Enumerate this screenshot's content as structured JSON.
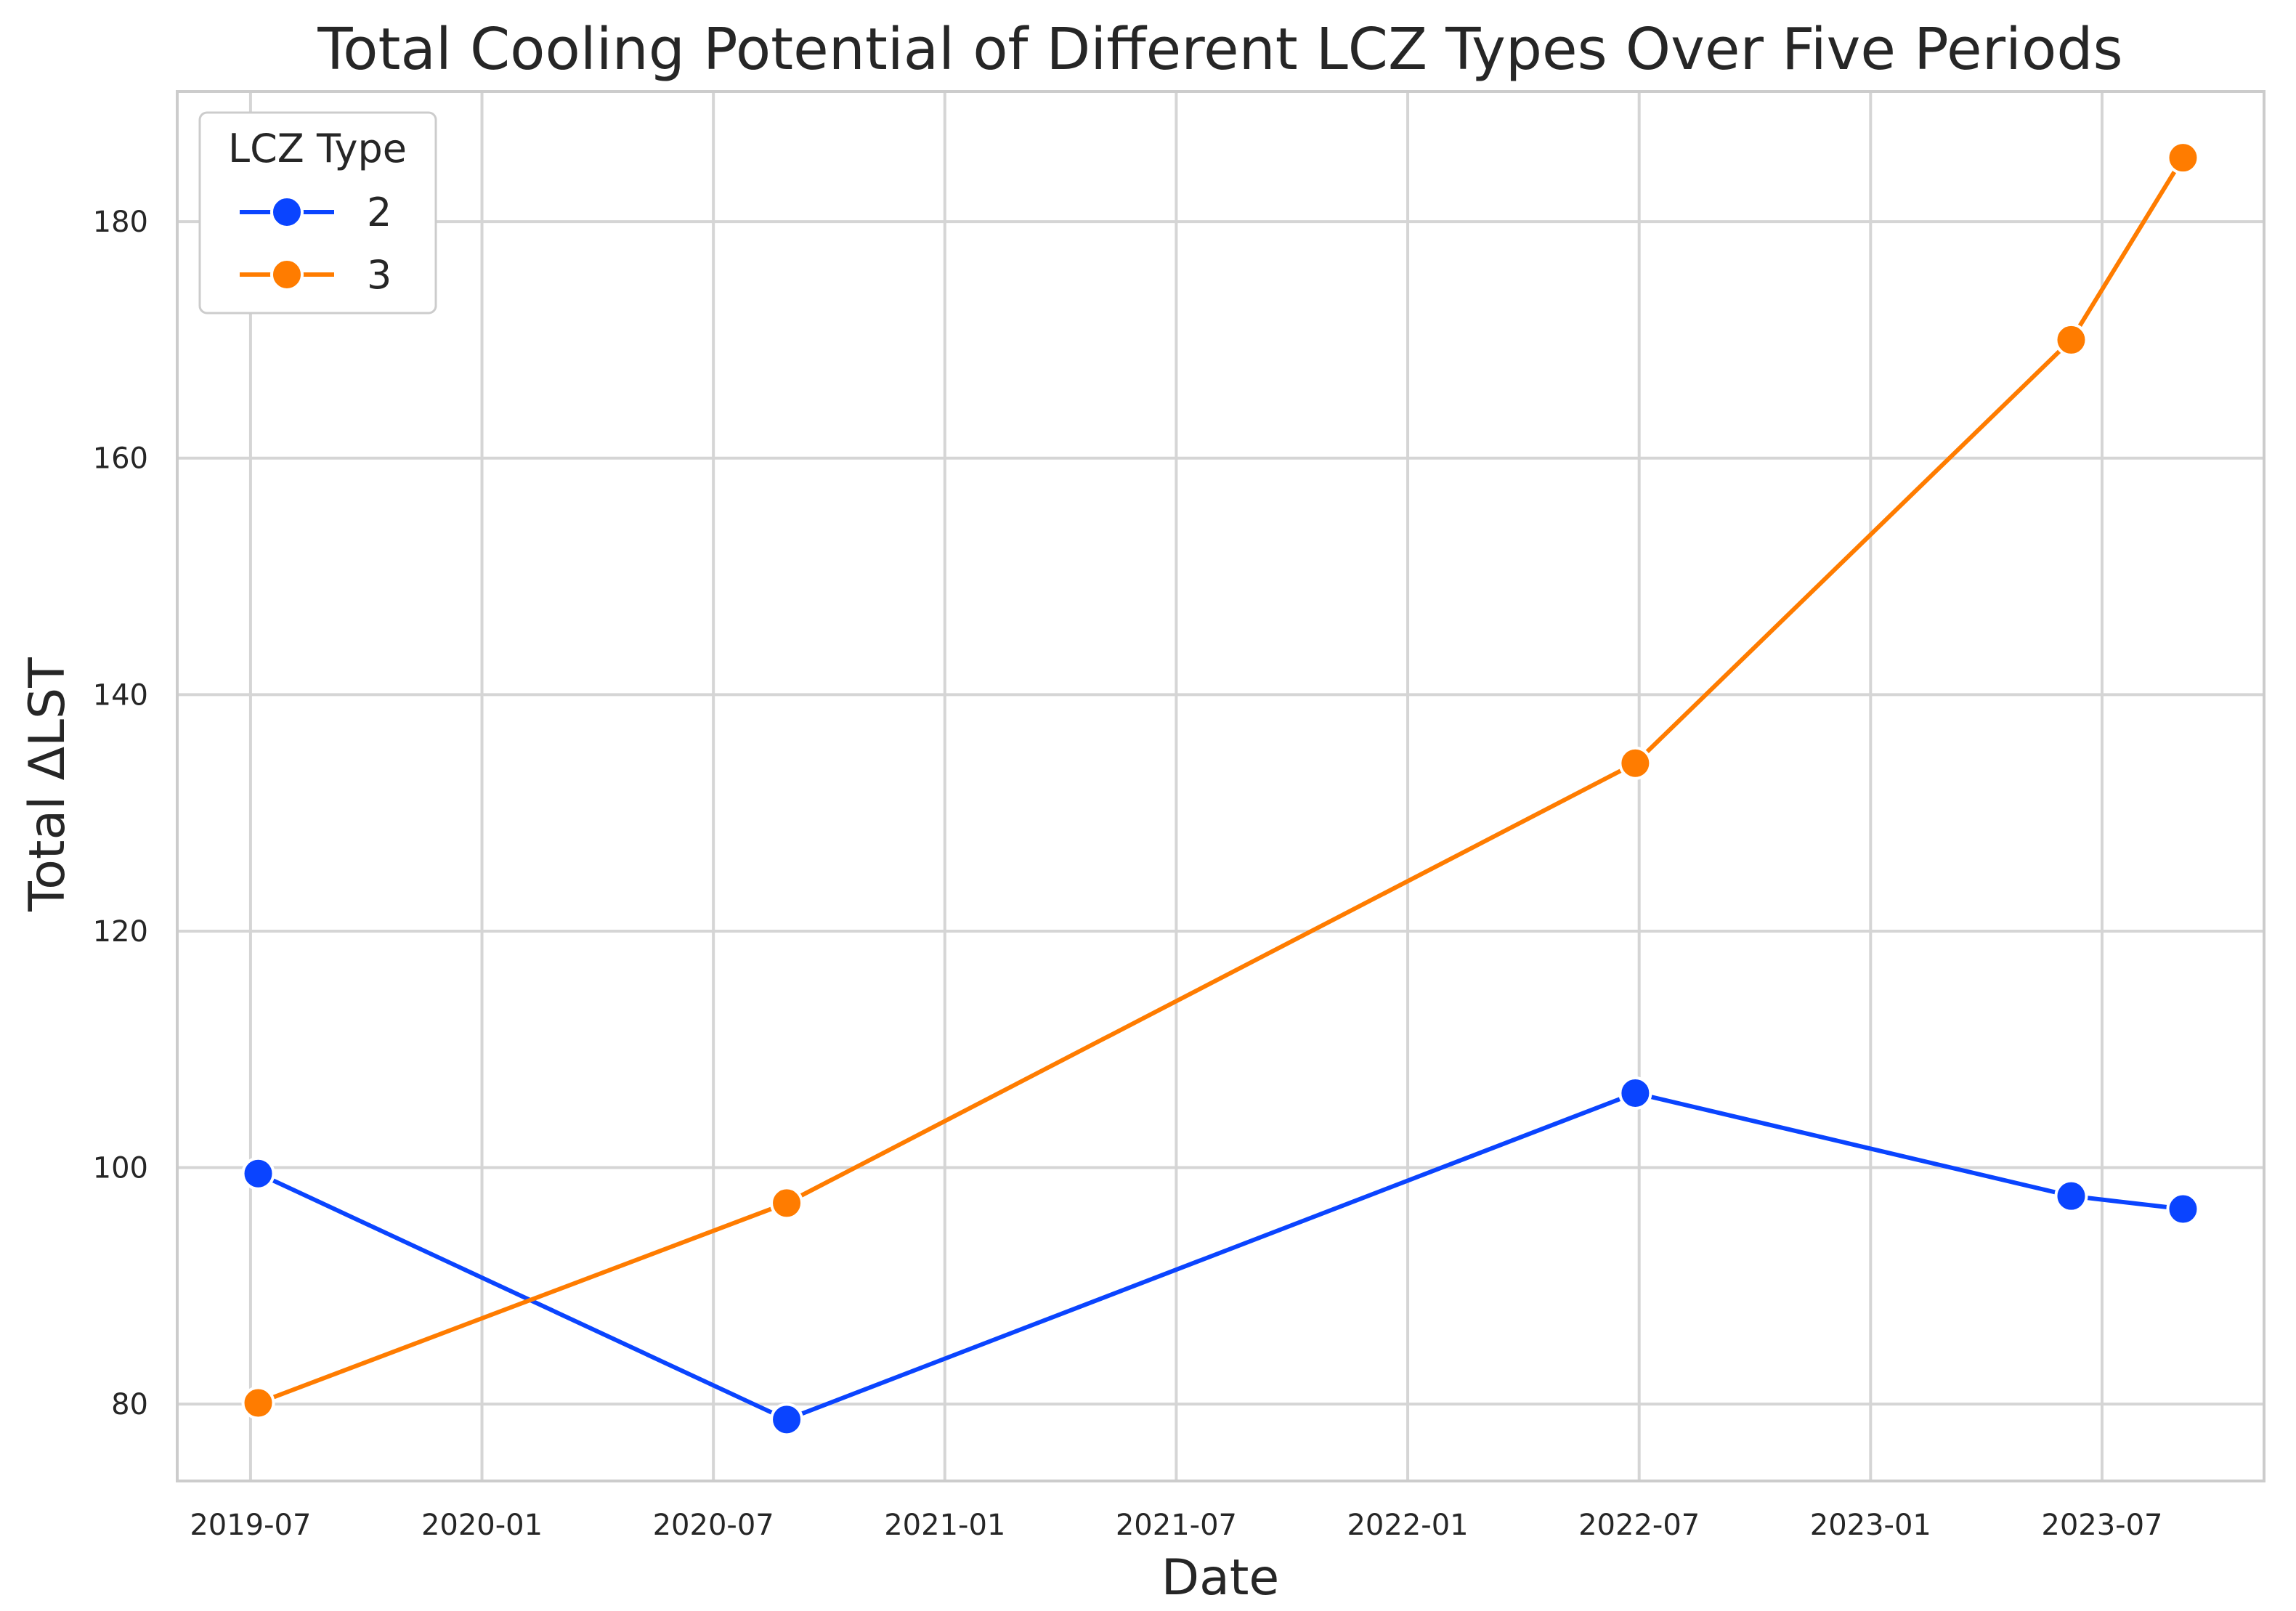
{
  "chart_data": {
    "type": "line",
    "title": "Total Cooling Potential of Different LCZ Types Over Five Periods",
    "xlabel": "Date",
    "ylabel": "Total ΔLST",
    "x_ticks": [
      "2019-07",
      "2020-01",
      "2020-07",
      "2021-01",
      "2021-07",
      "2022-01",
      "2022-07",
      "2023-01",
      "2023-07"
    ],
    "x_tick_months": [
      0,
      6,
      12,
      18,
      24,
      30,
      36,
      42,
      48
    ],
    "x_range_months": [
      -1.9,
      52.2
    ],
    "y_ticks": [
      80,
      100,
      120,
      140,
      160,
      180
    ],
    "ylim": [
      73.5,
      191
    ],
    "grid": true,
    "legend": {
      "title": "LCZ Type",
      "position": "top-left"
    },
    "series": [
      {
        "name": "2",
        "color": "#0a44ff",
        "dates": [
          "2019-07",
          "2020-09",
          "2022-06",
          "2023-05",
          "2023-08"
        ],
        "x_months": [
          0.2,
          13.9,
          35.9,
          47.2,
          50.1
        ],
        "values": [
          99.5,
          78.7,
          106.3,
          97.6,
          96.5
        ]
      },
      {
        "name": "3",
        "color": "#ff7c00",
        "dates": [
          "2019-07",
          "2020-09",
          "2022-06",
          "2023-05",
          "2023-08"
        ],
        "x_months": [
          0.2,
          13.9,
          35.9,
          47.2,
          50.1
        ],
        "values": [
          80.1,
          97.0,
          134.2,
          170.0,
          185.4
        ]
      }
    ]
  }
}
